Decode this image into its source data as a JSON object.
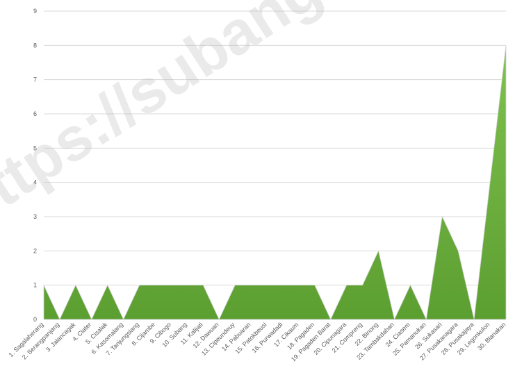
{
  "chart_data": {
    "type": "area",
    "categories": [
      "1. Sagalaherang",
      "2. Serangpanjang",
      "3. Jalancagak",
      "4. Ciater",
      "5. Cisalak",
      "6. Kasomalang",
      "7. Tanjungsiang",
      "8. Cijambe",
      "9. Cibogo",
      "10. Subang",
      "11. Kalijati",
      "12. Dawuan",
      "13. Cipeundeuy",
      "14. Pabuaran",
      "15. Patokbeusi",
      "16. Purwadadi",
      "17. Cikaum",
      "18. Pagaden",
      "19. Pagaden Barat",
      "20. Cipunagara",
      "21. Compreng",
      "22. Binong",
      "23. Tambakdahan",
      "24. Ciasem",
      "25. Pamanukan",
      "26. Sukasari",
      "27. Pusakanagara",
      "28. Pusakajaya",
      "29. Legonkulon",
      "30. Blanakan"
    ],
    "values": [
      1,
      0,
      1,
      0,
      1,
      0,
      1,
      1,
      1,
      1,
      1,
      0,
      1,
      1,
      1,
      1,
      1,
      1,
      0,
      1,
      1,
      2,
      0,
      1,
      0,
      3,
      2,
      0,
      4,
      8
    ],
    "color": "#66a63a",
    "ylim": [
      0,
      9
    ],
    "yticks": [
      0,
      1,
      2,
      3,
      4,
      5,
      6,
      7,
      8,
      9
    ],
    "grid": true,
    "watermark": "https://subangkab"
  }
}
